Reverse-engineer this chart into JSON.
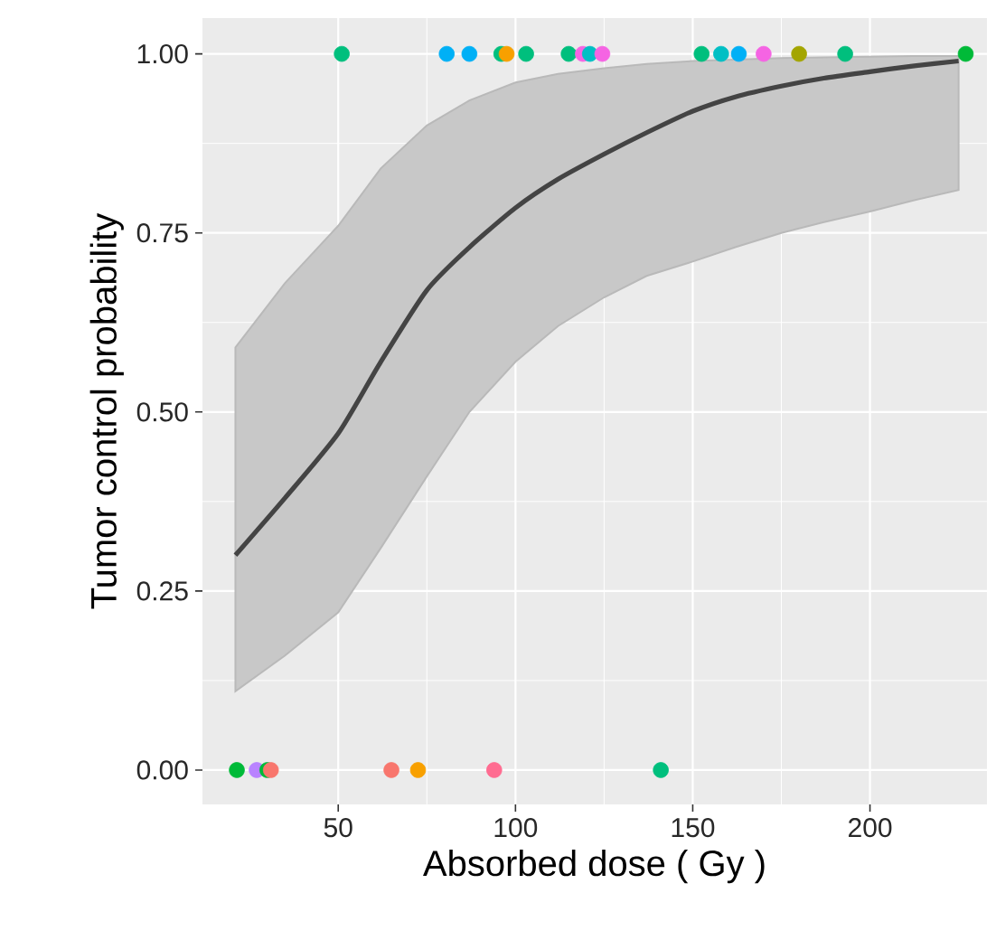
{
  "chart_data": {
    "type": "scatter",
    "xlabel": "Absorbed dose ( Gy )",
    "ylabel": "Tumor control probability",
    "xlim": [
      11.7,
      233
    ],
    "ylim": [
      -0.048,
      1.05
    ],
    "xticks": [
      50,
      100,
      150,
      200
    ],
    "yticks": [
      {
        "value": 0,
        "label": "0.00"
      },
      {
        "value": 0.25,
        "label": "0.25"
      },
      {
        "value": 0.5,
        "label": "0.50"
      },
      {
        "value": 0.75,
        "label": "0.75"
      },
      {
        "value": 1,
        "label": "1.00"
      }
    ],
    "grid": true,
    "series": [
      {
        "marker": "circle",
        "x": [
          51,
          80.6,
          87,
          96,
          97.5,
          103,
          115,
          119,
          121,
          124.5,
          152.5,
          158,
          163,
          170,
          180,
          193,
          227,
          21.4,
          27,
          30,
          31,
          65,
          72.5,
          94,
          141
        ],
        "values": [
          1,
          1,
          1,
          1,
          1,
          1,
          1,
          1,
          1,
          1,
          1,
          1,
          1,
          1,
          1,
          1,
          1,
          0,
          0,
          0,
          0,
          0,
          0,
          0,
          0
        ],
        "colors": [
          "#00bf7d",
          "#00b0f6",
          "#00b0f6",
          "#00bf7d",
          "#f8a000",
          "#00bf7d",
          "#00bf7d",
          "#f564e3",
          "#00bfc4",
          "#f564e3",
          "#00bf7d",
          "#00bfc4",
          "#00b0f6",
          "#f564e3",
          "#a3a500",
          "#00bf7d",
          "#00ba38",
          "#00ba38",
          "#b983ff",
          "#00ba38",
          "#f8766d",
          "#f8766d",
          "#f8a000",
          "#ff6c91",
          "#00bf7d"
        ]
      },
      {
        "type": "line",
        "marker": "none",
        "color": "#444444",
        "x": [
          21,
          35,
          50,
          62,
          75,
          87,
          100,
          112,
          125,
          137,
          150,
          162,
          175,
          187,
          200,
          212,
          225
        ],
        "values": [
          0.3,
          0.38,
          0.47,
          0.57,
          0.67,
          0.73,
          0.785,
          0.825,
          0.86,
          0.89,
          0.92,
          0.94,
          0.955,
          0.966,
          0.975,
          0.983,
          0.99
        ],
        "lower": [
          0.11,
          0.16,
          0.22,
          0.31,
          0.41,
          0.5,
          0.57,
          0.62,
          0.66,
          0.69,
          0.71,
          0.73,
          0.75,
          0.765,
          0.78,
          0.795,
          0.81
        ],
        "upper": [
          0.59,
          0.68,
          0.76,
          0.84,
          0.9,
          0.935,
          0.96,
          0.972,
          0.98,
          0.986,
          0.99,
          0.992,
          0.994,
          0.995,
          0.996,
          0.997,
          0.997
        ]
      }
    ]
  }
}
